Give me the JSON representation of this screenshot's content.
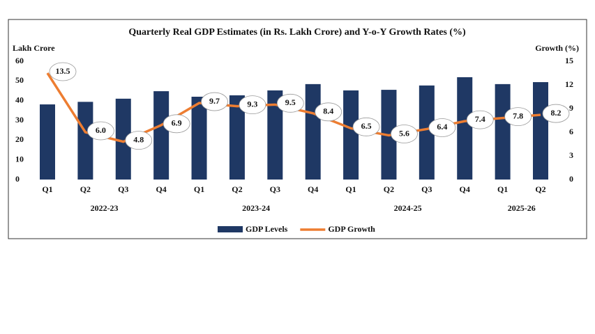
{
  "chart_data": {
    "type": "bar-line",
    "title": "Quarterly Real GDP Estimates (in Rs. Lakh Crore) and Y-o-Y Growth Rates (%)",
    "y_label": "Lakh Crore",
    "y2_label": "Growth (%)",
    "groups": [
      {
        "name": "2022-23",
        "categories": [
          "Q1",
          "Q2",
          "Q3",
          "Q4"
        ]
      },
      {
        "name": "2023-24",
        "categories": [
          "Q1",
          "Q2",
          "Q3",
          "Q4"
        ]
      },
      {
        "name": "2024-25",
        "categories": [
          "Q1",
          "Q2",
          "Q3",
          "Q4"
        ]
      },
      {
        "name": "2025-26",
        "categories": [
          "Q1",
          "Q2"
        ]
      }
    ],
    "series": [
      {
        "name": "GDP Levels",
        "type": "bar",
        "color": "#1f3864",
        "values": [
          38.1,
          39.4,
          41.0,
          44.8,
          42.0,
          42.7,
          45.2,
          48.4,
          45.2,
          45.5,
          47.7,
          51.9,
          48.4,
          49.4
        ]
      },
      {
        "name": "GDP Growth",
        "type": "line",
        "axis": "y2",
        "color": "#ed7d31",
        "values": [
          13.5,
          6.0,
          4.8,
          6.9,
          9.7,
          9.3,
          9.5,
          8.4,
          6.5,
          5.6,
          6.4,
          7.4,
          7.8,
          8.2
        ],
        "value_labels": [
          "13.5",
          "6.0",
          "4.8",
          "6.9",
          "9.7",
          "9.3",
          "9.5",
          "8.4",
          "6.5",
          "5.6",
          "6.4",
          "7.4",
          "7.8",
          "8.2"
        ]
      }
    ],
    "ylim": [
      0,
      60
    ],
    "yticks": [
      0,
      10,
      20,
      30,
      40,
      50,
      60
    ],
    "y2lim": [
      0,
      15
    ],
    "y2ticks": [
      0,
      3,
      6,
      9,
      12,
      15
    ],
    "y_tick_color": "#1f3864",
    "y2_tick_color": "#ed7d31",
    "legend": "bottom",
    "grid": false
  }
}
